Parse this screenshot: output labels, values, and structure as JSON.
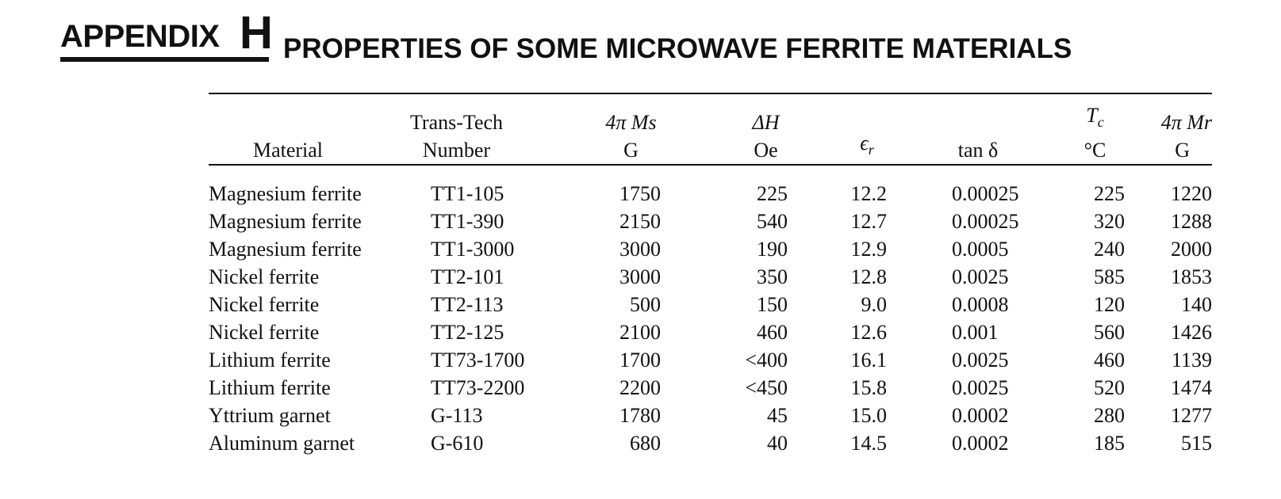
{
  "appendix": {
    "label": "APPENDIX",
    "letter": "H"
  },
  "title": "PROPERTIES OF SOME MICROWAVE FERRITE MATERIALS",
  "table": {
    "headers": {
      "material": "Material",
      "number_line1": "Trans-Tech",
      "number_line2": "Number",
      "ms_line1": "4π Ms",
      "ms_line2": "G",
      "dh_line1": "ΔH",
      "dh_line2": "Oe",
      "er_symbol": "ϵ",
      "er_sub": "r",
      "tand": "tan δ",
      "tc_symbol": "T",
      "tc_sub": "c",
      "tc_unit": "°C",
      "mr_line1": "4π Mr",
      "mr_line2": "G"
    },
    "rows": [
      {
        "material": "Magnesium ferrite",
        "number": "TT1-105",
        "ms": "1750",
        "dh": "225",
        "er": "12.2",
        "tand": "0.00025",
        "tc": "225",
        "mr": "1220"
      },
      {
        "material": "Magnesium ferrite",
        "number": "TT1-390",
        "ms": "2150",
        "dh": "540",
        "er": "12.7",
        "tand": "0.00025",
        "tc": "320",
        "mr": "1288"
      },
      {
        "material": "Magnesium ferrite",
        "number": "TT1-3000",
        "ms": "3000",
        "dh": "190",
        "er": "12.9",
        "tand": "0.0005",
        "tc": "240",
        "mr": "2000"
      },
      {
        "material": "Nickel ferrite",
        "number": "TT2-101",
        "ms": "3000",
        "dh": "350",
        "er": "12.8",
        "tand": "0.0025",
        "tc": "585",
        "mr": "1853"
      },
      {
        "material": "Nickel ferrite",
        "number": "TT2-113",
        "ms": "500",
        "dh": "150",
        "er": "9.0",
        "tand": "0.0008",
        "tc": "120",
        "mr": "140"
      },
      {
        "material": "Nickel ferrite",
        "number": "TT2-125",
        "ms": "2100",
        "dh": "460",
        "er": "12.6",
        "tand": "0.001",
        "tc": "560",
        "mr": "1426"
      },
      {
        "material": "Lithium ferrite",
        "number": "TT73-1700",
        "ms": "1700",
        "dh": "<400",
        "er": "16.1",
        "tand": "0.0025",
        "tc": "460",
        "mr": "1139"
      },
      {
        "material": "Lithium ferrite",
        "number": "TT73-2200",
        "ms": "2200",
        "dh": "<450",
        "er": "15.8",
        "tand": "0.0025",
        "tc": "520",
        "mr": "1474"
      },
      {
        "material": "Yttrium garnet",
        "number": "G-113",
        "ms": "1780",
        "dh": "45",
        "er": "15.0",
        "tand": "0.0002",
        "tc": "280",
        "mr": "1277"
      },
      {
        "material": "Aluminum garnet",
        "number": "G-610",
        "ms": "680",
        "dh": "40",
        "er": "14.5",
        "tand": "0.0002",
        "tc": "185",
        "mr": "515"
      }
    ]
  }
}
